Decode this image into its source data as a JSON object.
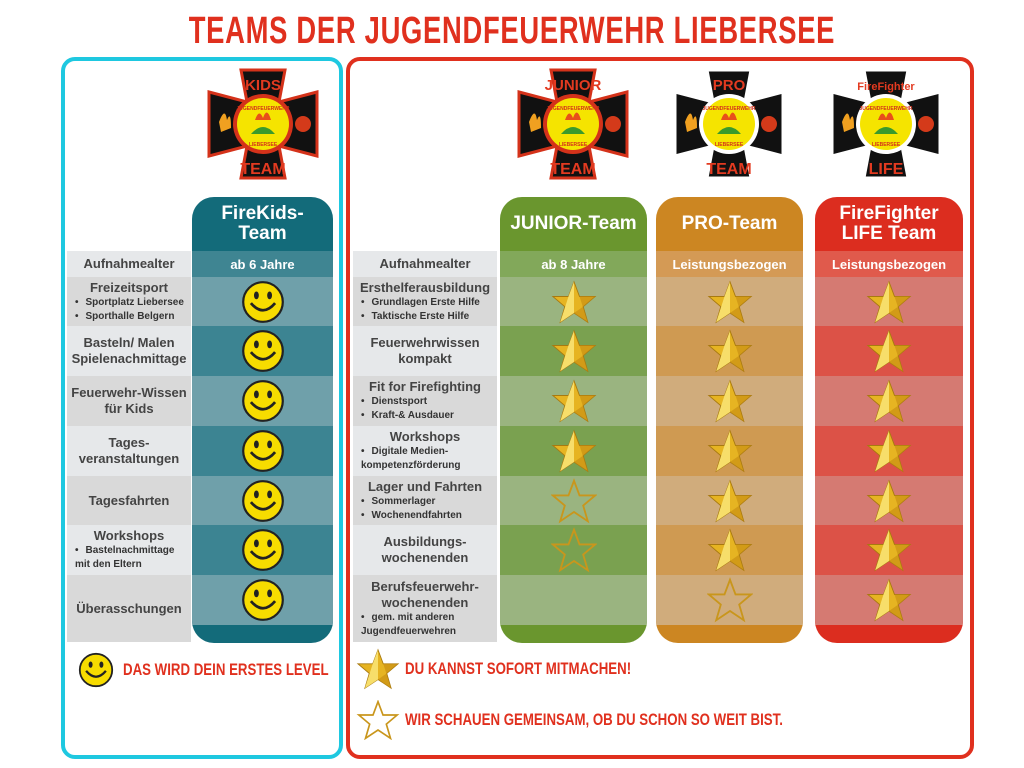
{
  "title": "TEAMS DER JUGENDFEUERWEHR LIEBERSEE",
  "colors": {
    "kids_border": "#1ec8e0",
    "main_border": "#e0301e",
    "title": "#e0301e"
  },
  "label_header": "Aufnahmealter",
  "kids": {
    "name": "FireKids-Team",
    "age": "ab 6 Jahre",
    "logo": {
      "top": "KIDS",
      "bottom": "TEAM",
      "ring": "JUGENDFEUERWEHR",
      "ring_bottom": "LIEBERSEE"
    },
    "rows": [
      {
        "label": "Freizeitsport",
        "items": [
          "Sportplatz Liebersee",
          "Sporthalle Belgern"
        ]
      },
      {
        "label": "Basteln/ Malen Spielenachmittage",
        "items": []
      },
      {
        "label": "Feuerwehr-Wissen für Kids",
        "items": []
      },
      {
        "label": "Tages-veranstaltungen",
        "items": []
      },
      {
        "label": "Tagesfahrten",
        "items": []
      },
      {
        "label": "Workshops",
        "items": [
          "Bastelnachmittage mit den Eltern"
        ]
      },
      {
        "label": "Überasschungen",
        "items": []
      }
    ],
    "marks": [
      "smiley",
      "smiley",
      "smiley",
      "smiley",
      "smiley",
      "smiley",
      "smiley"
    ]
  },
  "main_rows": [
    {
      "label": "Ersthelferausbildung",
      "items": [
        "Grundlagen Erste Hilfe",
        "Taktische Erste Hilfe"
      ]
    },
    {
      "label": "Feuerwehrwissen kompakt",
      "items": []
    },
    {
      "label": "Fit for Firefighting",
      "items": [
        "Dienstsport",
        "Kraft-& Ausdauer"
      ]
    },
    {
      "label": "Workshops",
      "items": [
        "Digitale Medien-kompetenzförderung"
      ]
    },
    {
      "label": "Lager und Fahrten",
      "items": [
        "Sommerlager",
        "Wochenendfahrten"
      ]
    },
    {
      "label": "Ausbildungs-wochenenden",
      "items": []
    },
    {
      "label": "Berufsfeuerwehr-wochenenden",
      "items": [
        "gem. mit anderen Jugendfeuerwehren"
      ]
    }
  ],
  "teams": [
    {
      "name": "JUNIOR-Team",
      "age": "ab 8 Jahre",
      "logo": {
        "top": "JUNIOR",
        "bottom": "TEAM"
      },
      "colors": {
        "head": "#6a962e",
        "age": "#82a85a",
        "light": "#9ab480",
        "dark": "#7aa150"
      },
      "marks": [
        "star",
        "star",
        "star",
        "star",
        "outline",
        "outline",
        "none"
      ]
    },
    {
      "name": "PRO-Team",
      "age": "Leistungsbezogen",
      "logo": {
        "top": "PRO",
        "bottom": "TEAM"
      },
      "colors": {
        "head": "#cc8622",
        "age": "#d49a55",
        "light": "#d0ac7c",
        "dark": "#cf9a52"
      },
      "marks": [
        "star",
        "star",
        "star",
        "star",
        "star",
        "star",
        "outline"
      ]
    },
    {
      "name": "FireFighter LIFE Team",
      "age": "Leistungsbezogen",
      "logo": {
        "top": "FireFighter",
        "bottom": "LIFE"
      },
      "colors": {
        "head": "#dc2d1f",
        "age": "#e05a4c",
        "light": "#d57a72",
        "dark": "#dc5247"
      },
      "marks": [
        "star",
        "star",
        "star",
        "star",
        "star",
        "star",
        "star"
      ]
    }
  ],
  "legend": {
    "smiley": "DAS WIRD DEIN ERSTES LEVEL",
    "star": "DU KANNST SOFORT MITMACHEN!",
    "outline": "WIR SCHAUEN GEMEINSAM, OB DU SCHON SO WEIT BIST."
  }
}
